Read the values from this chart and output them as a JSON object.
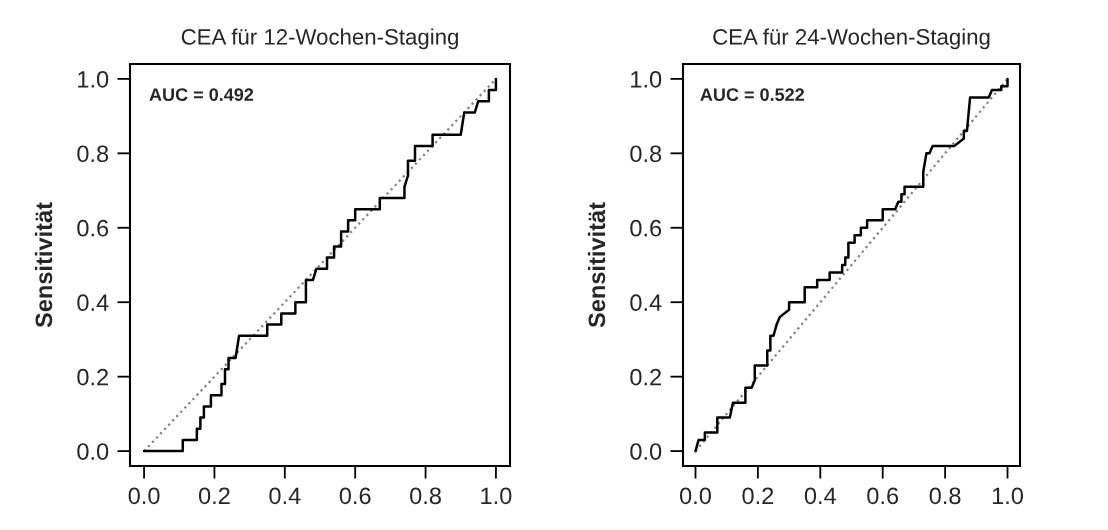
{
  "chart_data": [
    {
      "type": "line",
      "title": "CEA für 12-Wochen-Staging",
      "ylabel": "Sensitivität",
      "annotations": [
        "AUC = 0.492"
      ],
      "xlim": [
        -0.04,
        1.04
      ],
      "ylim": [
        -0.04,
        1.04
      ],
      "xticks": [
        {
          "value": 0,
          "label": "0.0"
        },
        {
          "value": 0.2,
          "label": "0.2"
        },
        {
          "value": 0.4,
          "label": "0.4"
        },
        {
          "value": 0.6,
          "label": "0.6"
        },
        {
          "value": 0.8,
          "label": "0.8"
        },
        {
          "value": 1,
          "label": "1.0"
        }
      ],
      "yticks": [
        {
          "value": 0,
          "label": "0.0"
        },
        {
          "value": 0.2,
          "label": "0.2"
        },
        {
          "value": 0.4,
          "label": "0.4"
        },
        {
          "value": 0.6,
          "label": "0.6"
        },
        {
          "value": 0.8,
          "label": "0.8"
        },
        {
          "value": 1,
          "label": "1.0"
        }
      ],
      "series": [
        {
          "type": "line",
          "color": "#808080",
          "line_style": "dotted",
          "x": [
            0,
            1
          ],
          "values": [
            0,
            1
          ]
        },
        {
          "type": "line",
          "color": "#000000",
          "line_style": "solid",
          "x": [
            0,
            0.11,
            0.11,
            0.15,
            0.15,
            0.16,
            0.16,
            0.17,
            0.17,
            0.19,
            0.19,
            0.22,
            0.22,
            0.23,
            0.23,
            0.24,
            0.24,
            0.26,
            0.27,
            0.35,
            0.35,
            0.39,
            0.39,
            0.43,
            0.43,
            0.46,
            0.46,
            0.48,
            0.49,
            0.52,
            0.52,
            0.54,
            0.54,
            0.56,
            0.56,
            0.58,
            0.58,
            0.6,
            0.6,
            0.67,
            0.67,
            0.74,
            0.74,
            0.75,
            0.75,
            0.77,
            0.77,
            0.82,
            0.82,
            0.9,
            0.91,
            0.94,
            0.95,
            0.98,
            0.98,
            1.0,
            1.0
          ],
          "values": [
            0,
            0,
            0.03,
            0.03,
            0.06,
            0.06,
            0.09,
            0.09,
            0.12,
            0.12,
            0.15,
            0.15,
            0.18,
            0.18,
            0.22,
            0.22,
            0.25,
            0.25,
            0.31,
            0.31,
            0.34,
            0.34,
            0.37,
            0.37,
            0.4,
            0.4,
            0.46,
            0.46,
            0.49,
            0.49,
            0.52,
            0.52,
            0.55,
            0.55,
            0.59,
            0.59,
            0.62,
            0.62,
            0.65,
            0.65,
            0.68,
            0.68,
            0.71,
            0.74,
            0.78,
            0.78,
            0.82,
            0.82,
            0.85,
            0.85,
            0.91,
            0.91,
            0.94,
            0.94,
            0.97,
            0.97,
            1.0
          ]
        }
      ]
    },
    {
      "type": "line",
      "title": "CEA für 24-Wochen-Staging",
      "ylabel": "Sensitivität",
      "annotations": [
        "AUC = 0.522"
      ],
      "xlim": [
        -0.04,
        1.04
      ],
      "ylim": [
        -0.04,
        1.04
      ],
      "xticks": [
        {
          "value": 0,
          "label": "0.0"
        },
        {
          "value": 0.2,
          "label": "0.2"
        },
        {
          "value": 0.4,
          "label": "0.4"
        },
        {
          "value": 0.6,
          "label": "0.6"
        },
        {
          "value": 0.8,
          "label": "0.8"
        },
        {
          "value": 1,
          "label": "1.0"
        }
      ],
      "yticks": [
        {
          "value": 0,
          "label": "0.0"
        },
        {
          "value": 0.2,
          "label": "0.2"
        },
        {
          "value": 0.4,
          "label": "0.4"
        },
        {
          "value": 0.6,
          "label": "0.6"
        },
        {
          "value": 0.8,
          "label": "0.8"
        },
        {
          "value": 1,
          "label": "1.0"
        }
      ],
      "series": [
        {
          "type": "line",
          "color": "#808080",
          "line_style": "dotted",
          "x": [
            0,
            1
          ],
          "values": [
            0,
            1
          ]
        },
        {
          "type": "line",
          "color": "#000000",
          "line_style": "solid",
          "x": [
            0,
            0.01,
            0.03,
            0.03,
            0.07,
            0.07,
            0.11,
            0.12,
            0.16,
            0.16,
            0.18,
            0.19,
            0.19,
            0.23,
            0.23,
            0.24,
            0.24,
            0.25,
            0.26,
            0.27,
            0.3,
            0.3,
            0.35,
            0.35,
            0.39,
            0.39,
            0.43,
            0.43,
            0.47,
            0.47,
            0.48,
            0.48,
            0.49,
            0.49,
            0.51,
            0.51,
            0.53,
            0.53,
            0.55,
            0.55,
            0.6,
            0.6,
            0.64,
            0.65,
            0.66,
            0.66,
            0.67,
            0.67,
            0.73,
            0.73,
            0.74,
            0.75,
            0.76,
            0.83,
            0.86,
            0.86,
            0.87,
            0.88,
            0.94,
            0.95,
            0.98,
            0.98,
            1.0,
            1.0
          ],
          "values": [
            0,
            0.03,
            0.03,
            0.05,
            0.05,
            0.09,
            0.09,
            0.13,
            0.13,
            0.17,
            0.17,
            0.19,
            0.23,
            0.23,
            0.27,
            0.27,
            0.31,
            0.31,
            0.34,
            0.36,
            0.38,
            0.4,
            0.4,
            0.44,
            0.44,
            0.46,
            0.46,
            0.48,
            0.48,
            0.5,
            0.5,
            0.52,
            0.52,
            0.56,
            0.56,
            0.58,
            0.58,
            0.6,
            0.6,
            0.62,
            0.62,
            0.65,
            0.65,
            0.67,
            0.67,
            0.69,
            0.69,
            0.71,
            0.71,
            0.75,
            0.8,
            0.8,
            0.82,
            0.82,
            0.84,
            0.86,
            0.86,
            0.95,
            0.95,
            0.97,
            0.97,
            0.98,
            0.98,
            1.0
          ]
        }
      ]
    }
  ]
}
